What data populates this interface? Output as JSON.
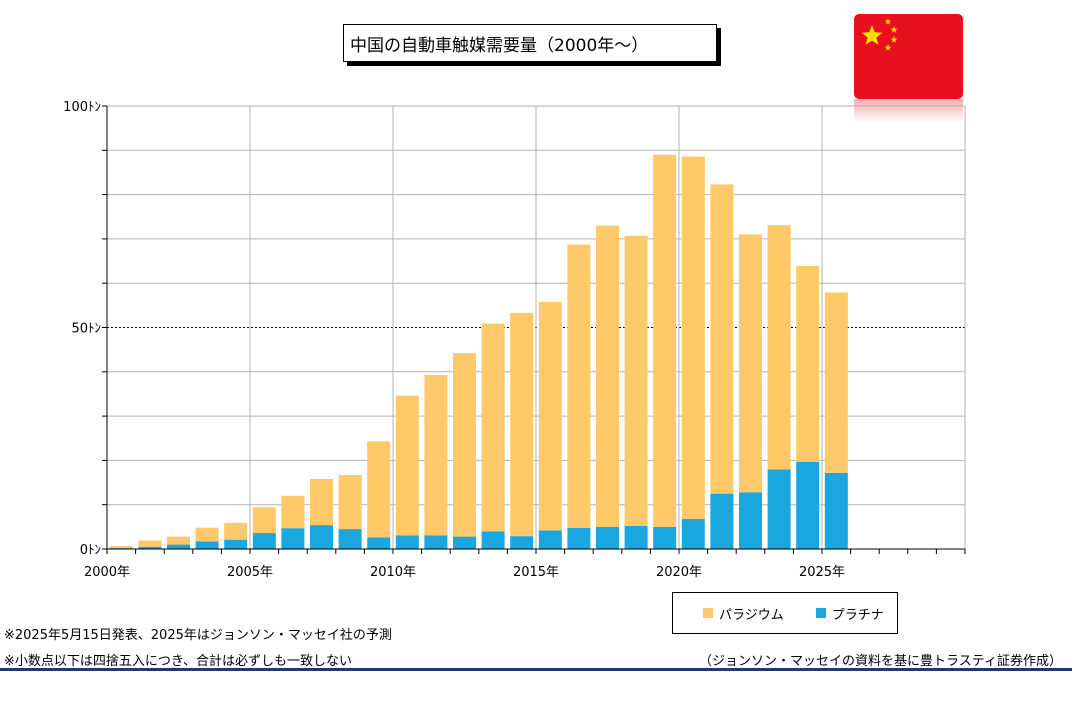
{
  "chart_data": {
    "type": "bar",
    "stacked": true,
    "title": "中国の自動車触媒需要量（2000年～）",
    "ylim": [
      0,
      100
    ],
    "yticks": [
      {
        "value": 0,
        "label": "0ﾄﾝ"
      },
      {
        "value": 50,
        "label": "50ﾄﾝ"
      },
      {
        "value": 100,
        "label": "100ﾄﾝ"
      }
    ],
    "xtick_labels": [
      "2000年",
      "2005年",
      "2010年",
      "2015年",
      "2020年",
      "2025年"
    ],
    "categories": [
      2000,
      2001,
      2002,
      2003,
      2004,
      2005,
      2006,
      2007,
      2008,
      2009,
      2010,
      2011,
      2012,
      2013,
      2014,
      2015,
      2016,
      2017,
      2018,
      2019,
      2020,
      2021,
      2022,
      2023,
      2024,
      2025,
      2026,
      2027,
      2028,
      2029
    ],
    "series": [
      {
        "name": "プラチナ",
        "color": "#1aa7e0",
        "values": [
          0.2,
          0.5,
          1.0,
          1.7,
          2.1,
          3.6,
          4.7,
          5.4,
          4.5,
          2.6,
          3.1,
          3.1,
          2.8,
          4.0,
          2.9,
          4.2,
          4.8,
          5.0,
          5.2,
          5.0,
          6.8,
          12.5,
          12.8,
          18.0,
          19.7,
          17.2,
          0,
          0,
          0,
          0
        ]
      },
      {
        "name": "パラジウム",
        "color": "#ffc869",
        "values": [
          0.5,
          1.4,
          1.8,
          3.1,
          3.8,
          5.8,
          7.3,
          10.4,
          12.2,
          21.7,
          31.5,
          36.2,
          41.4,
          46.9,
          50.4,
          51.6,
          63.9,
          68.0,
          65.5,
          84.0,
          81.8,
          69.8,
          58.2,
          55.1,
          44.2,
          40.7,
          0,
          0,
          0,
          0
        ]
      }
    ],
    "grid": true,
    "dashed_reference_line": 50,
    "legend_position": "bottom-right"
  },
  "legend": {
    "palladium": "パラジウム",
    "platinum": "プラチナ",
    "palladium_color": "#ffc869",
    "platinum_color": "#1aa7e0"
  },
  "notes": {
    "line1": "※2025年5月15日発表、2025年はジョンソン・マッセイ社の予測",
    "line2": "※小数点以下は四捨五入につき、合計は必ずしも一致しない"
  },
  "source": "（ジョンソン・マッセイの資料を基に豊トラスティ証券作成）",
  "flag_icon": "china-flag-icon"
}
